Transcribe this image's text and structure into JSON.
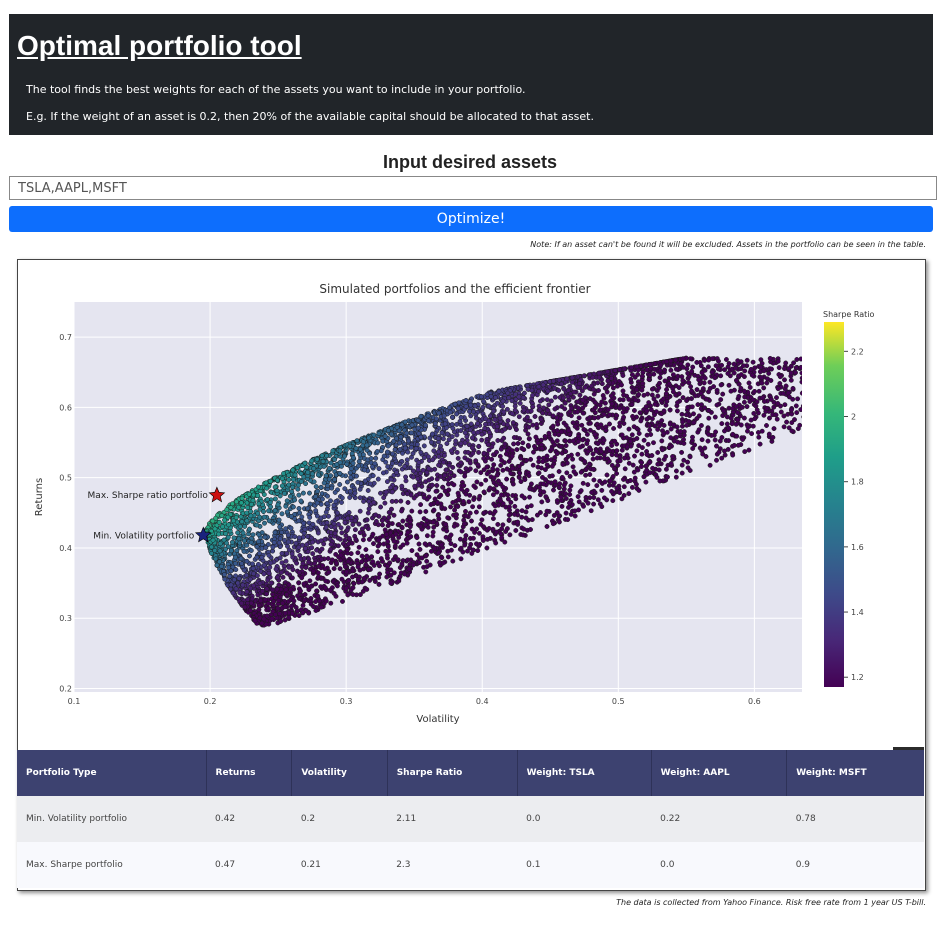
{
  "header": {
    "title": "Optimal portfolio tool",
    "desc1": "The tool finds the best weights for each of the assets you want to include in your portfolio.",
    "desc2": "E.g. If the weight of an asset is 0.2, then 20% of the available capital should be allocated to that asset."
  },
  "input": {
    "title": "Input desired assets",
    "value": "TSLA,AAPL,MSFT"
  },
  "button": {
    "label": "Optimize!"
  },
  "note": "Note: If an asset can't be found it will be excluded. Assets in the portfolio can be seen in the table.",
  "colors": {
    "header_bg": "#212529",
    "button": "#0d6efd",
    "table_header": "#3d4270",
    "plot_bg": "#e5e5f0"
  },
  "chart_data": {
    "type": "scatter",
    "title": "Simulated portfolios and the efficient frontier",
    "xlabel": "Volatility",
    "ylabel": "Returns",
    "xlim": [
      0.1,
      0.635
    ],
    "ylim": [
      0.195,
      0.75
    ],
    "xticks": [
      0.1,
      0.2,
      0.3,
      0.4,
      0.5,
      0.6
    ],
    "yticks": [
      0.2,
      0.3,
      0.4,
      0.5,
      0.6,
      0.7
    ],
    "grid": true,
    "colorbar": {
      "title": "Sharpe Ratio",
      "range": [
        1.17,
        2.29
      ],
      "ticks": [
        1.2,
        1.4,
        1.6,
        1.8,
        2,
        2.2
      ],
      "colorscale": "viridis"
    },
    "cloud": {
      "count": 5000,
      "min_vol_point": {
        "x": 0.2,
        "y": 0.42
      },
      "tail_end": {
        "x": 0.54,
        "y": 0.66
      },
      "bottom_point": {
        "x": 0.246,
        "y": 0.288
      }
    },
    "markers": [
      {
        "label": "Max. Sharpe ratio portfolio",
        "x": 0.205,
        "y": 0.475,
        "color": "#cc1111",
        "symbol": "star"
      },
      {
        "label": "Min. Volatility portfolio",
        "x": 0.195,
        "y": 0.418,
        "color": "#1a237e",
        "symbol": "star"
      }
    ]
  },
  "table": {
    "headers": [
      "Portfolio Type",
      "Returns",
      "Volatility",
      "Sharpe Ratio",
      "Weight: TSLA",
      "Weight: AAPL",
      "Weight: MSFT"
    ],
    "rows": [
      [
        "Min. Volatility portfolio",
        "0.42",
        "0.2",
        "2.11",
        "0.0",
        "0.22",
        "0.78"
      ],
      [
        "Max. Sharpe portfolio",
        "0.47",
        "0.21",
        "2.3",
        "0.1",
        "0.0",
        "0.9"
      ]
    ]
  },
  "footer": "The data is collected from Yahoo Finance. Risk free rate from 1 year US T-bill."
}
